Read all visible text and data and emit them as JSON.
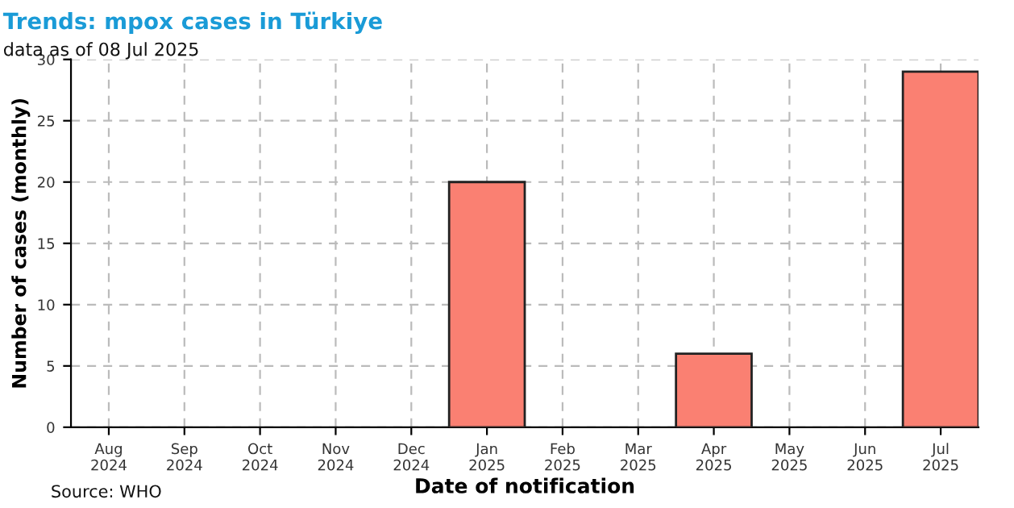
{
  "chart_data": {
    "type": "bar",
    "title": "Trends: mpox cases in Türkiye",
    "subtitle": "data as of 08 Jul 2025",
    "xlabel": "Date of notification",
    "ylabel": "Number of cases (monthly)",
    "categories": [
      "Aug\n2024",
      "Sep\n2024",
      "Oct\n2024",
      "Nov\n2024",
      "Dec\n2024",
      "Jan\n2025",
      "Feb\n2025",
      "Mar\n2025",
      "Apr\n2025",
      "May\n2025",
      "Jun\n2025",
      "Jul\n2025"
    ],
    "values": [
      null,
      null,
      null,
      null,
      null,
      20,
      null,
      null,
      6,
      null,
      null,
      29
    ],
    "color": "#fa8072",
    "ylim": [
      0,
      30
    ],
    "yticks": [
      0,
      5,
      10,
      15,
      20,
      25,
      30
    ],
    "grid": true,
    "annotations": [
      "Source: WHO"
    ]
  }
}
